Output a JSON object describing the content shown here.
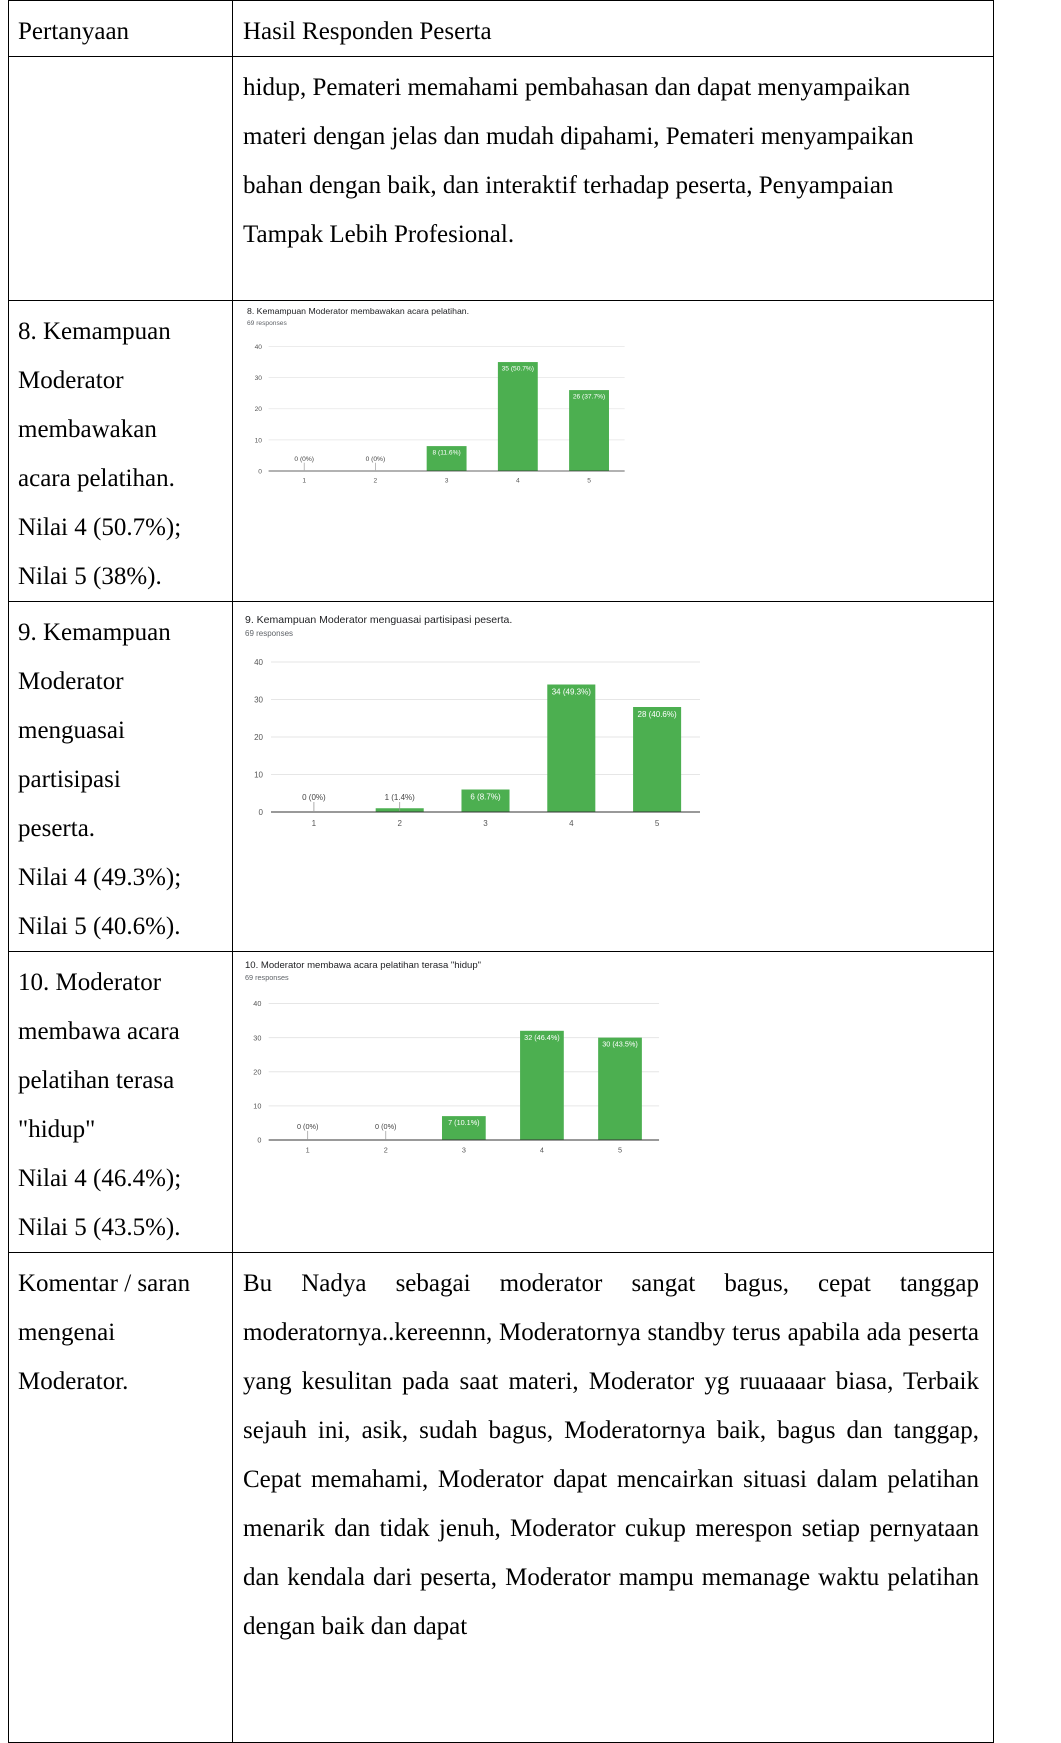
{
  "table": {
    "header": {
      "question": "Pertanyaan",
      "responses": "Hasil Responden Peserta"
    },
    "continued_text": "hidup, Pemateri memahami pembahasan dan dapat menyampaikan materi dengan jelas dan mudah dipahami, Pemateri menyampaikan bahan dengan baik, dan interaktif terhadap peserta, Penyampaian Tampak Lebih Profesional.",
    "rows": [
      {
        "lines": [
          "8. Kemampuan",
          "Moderator",
          "membawakan",
          "acara pelatihan.",
          "Nilai 4 (50.7%);",
          "Nilai 5 (38%)."
        ]
      },
      {
        "lines": [
          "9. Kemampuan",
          "Moderator",
          "menguasai",
          "partisipasi",
          "peserta.",
          "Nilai 4 (49.3%);",
          "Nilai 5 (40.6%)."
        ]
      },
      {
        "lines": [
          "10. Moderator",
          "membawa acara",
          "pelatihan terasa",
          "\"hidup\"",
          "Nilai 4 (46.4%);",
          "Nilai 5 (43.5%)."
        ]
      }
    ],
    "comment": {
      "label_lines": [
        "Komentar / saran",
        "mengenai",
        "Moderator."
      ],
      "text": "Bu Nadya sebagai moderator sangat bagus, cepat tanggap moderatornya..kereennn, Moderatornya standby terus apabila ada peserta yang kesulitan pada saat materi, Moderator yg ruuaaaar biasa, Terbaik sejauh ini, asik, sudah bagus, Moderatornya baik, bagus dan tanggap, Cepat memahami, Moderator dapat mencairkan situasi dalam pelatihan menarik dan tidak jenuh, Moderator cukup merespon setiap pernyataan dan kendala dari peserta, Moderator mampu memanage waktu pelatihan dengan baik dan dapat"
    }
  },
  "colors": {
    "bar": "#4caf50",
    "grid": "#e6e6e6",
    "axis": "#333333",
    "tick": "#555555"
  },
  "chart_data": [
    {
      "type": "bar",
      "title": "8. Kemampuan Moderator membawakan acara pelatihan.",
      "subtitle": "69 responses",
      "categories": [
        "1",
        "2",
        "3",
        "4",
        "5"
      ],
      "values": [
        0,
        0,
        8,
        35,
        26
      ],
      "labels": [
        "0 (0%)",
        "0 (0%)",
        "8 (11.6%)",
        "35 (50.7%)",
        "26 (37.7%)"
      ],
      "ylim": [
        0,
        40
      ],
      "yticks": [
        "0",
        "10",
        "20",
        "30",
        "40"
      ],
      "grid": true
    },
    {
      "type": "bar",
      "title": "9. Kemampuan Moderator menguasai partisipasi peserta.",
      "subtitle": "69 responses",
      "categories": [
        "1",
        "2",
        "3",
        "4",
        "5"
      ],
      "values": [
        0,
        1,
        6,
        34,
        28
      ],
      "labels": [
        "0 (0%)",
        "1 (1.4%)",
        "6 (8.7%)",
        "34 (49.3%)",
        "28 (40.6%)"
      ],
      "ylim": [
        0,
        40
      ],
      "yticks": [
        "0",
        "10",
        "20",
        "30",
        "40"
      ],
      "grid": true
    },
    {
      "type": "bar",
      "title": "10. Moderator membawa acara pelatihan terasa \"hidup\"",
      "subtitle": "69 responses",
      "categories": [
        "1",
        "2",
        "3",
        "4",
        "5"
      ],
      "values": [
        0,
        0,
        7,
        32,
        30
      ],
      "labels": [
        "0 (0%)",
        "0 (0%)",
        "7 (10.1%)",
        "32 (46.4%)",
        "30 (43.5%)"
      ],
      "ylim": [
        0,
        40
      ],
      "yticks": [
        "0",
        "10",
        "20",
        "30",
        "40"
      ],
      "grid": true
    }
  ]
}
